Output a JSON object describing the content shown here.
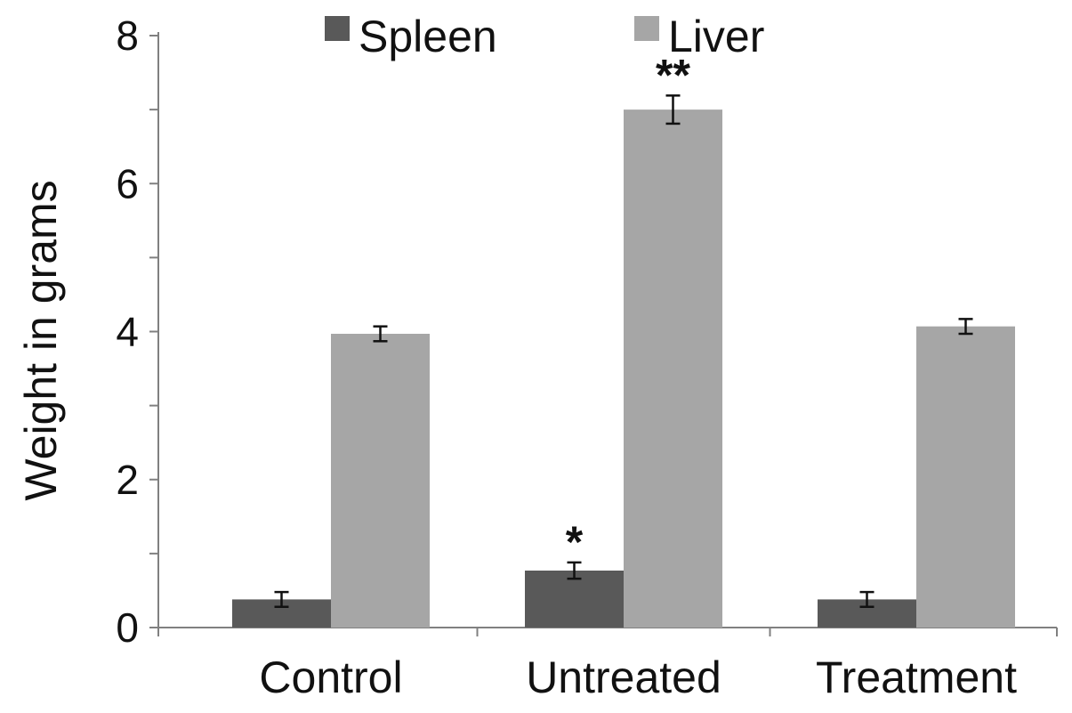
{
  "chart_data": {
    "type": "bar",
    "title": "",
    "xlabel": "",
    "ylabel": "Weight in grams",
    "ylim": [
      0,
      8
    ],
    "yticks": [
      0,
      2,
      4,
      6,
      8
    ],
    "grid": false,
    "legend_position": "top",
    "categories": [
      "Control",
      "Untreated",
      "Treatment"
    ],
    "series": [
      {
        "name": "Spleen",
        "color": "#595959",
        "values": [
          0.38,
          0.77,
          0.38
        ],
        "errors": [
          0.1,
          0.11,
          0.1
        ]
      },
      {
        "name": "Liver",
        "color": "#a6a6a6",
        "values": [
          3.97,
          7.0,
          4.07
        ],
        "errors": [
          0.1,
          0.19,
          0.1
        ]
      }
    ],
    "annotations": [
      {
        "category": "Untreated",
        "series": "Spleen",
        "text": "*"
      },
      {
        "category": "Untreated",
        "series": "Liver",
        "text": "**"
      }
    ]
  }
}
